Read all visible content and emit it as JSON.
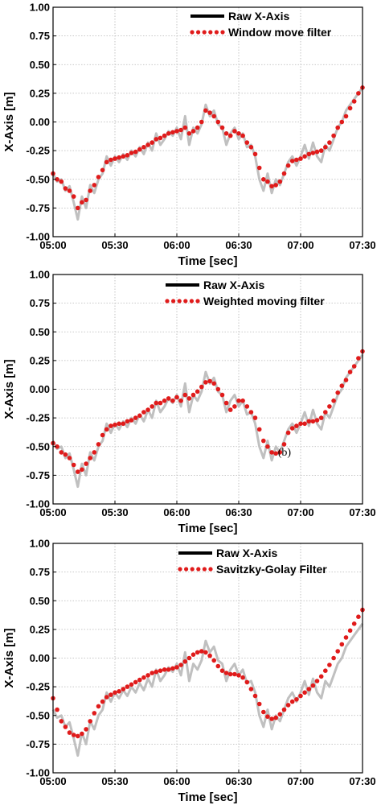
{
  "colors": {
    "raw": "#c0c0c0",
    "filtered": "#e01b1b",
    "legend_raw": "#000000",
    "grid": "#b5b5b5"
  },
  "chart_data": [
    {
      "type": "line",
      "xlabel": "Time [sec]",
      "ylabel": "X-Axis [m]",
      "xticks": [
        "05:00",
        "05:30",
        "06:00",
        "06:30",
        "07:00",
        "07:30"
      ],
      "yticks": [
        "1.00",
        "0.75",
        "0.50",
        "0.25",
        "0.00",
        "-0.25",
        "-0.50",
        "-0.75",
        "-1.00"
      ],
      "x_unit": "seconds since 05:00",
      "xlim": [
        0,
        150
      ],
      "ylim": [
        -1.0,
        1.0
      ],
      "grid": true,
      "legend_position": "top-right",
      "annotation": "",
      "series": [
        {
          "name": "Raw X-Axis",
          "style": "solid",
          "x": [
            0,
            2,
            4,
            6,
            8,
            10,
            12,
            14,
            16,
            18,
            20,
            22,
            24,
            26,
            28,
            30,
            32,
            34,
            36,
            38,
            40,
            42,
            44,
            46,
            48,
            50,
            52,
            54,
            56,
            58,
            60,
            62,
            64,
            66,
            68,
            70,
            72,
            74,
            76,
            78,
            80,
            82,
            84,
            86,
            88,
            90,
            92,
            94,
            96,
            98,
            100,
            102,
            104,
            106,
            108,
            110,
            112,
            114,
            116,
            118,
            120,
            122,
            124,
            126,
            128,
            130,
            132,
            134,
            136,
            138,
            140,
            142,
            144,
            146,
            148,
            150
          ],
          "y": [
            -0.45,
            -0.52,
            -0.5,
            -0.6,
            -0.56,
            -0.7,
            -0.85,
            -0.65,
            -0.75,
            -0.55,
            -0.62,
            -0.5,
            -0.45,
            -0.3,
            -0.38,
            -0.3,
            -0.35,
            -0.28,
            -0.33,
            -0.25,
            -0.3,
            -0.22,
            -0.28,
            -0.18,
            -0.25,
            -0.1,
            -0.2,
            -0.15,
            -0.08,
            -0.12,
            -0.05,
            -0.15,
            0.05,
            -0.2,
            -0.05,
            -0.1,
            -0.02,
            0.15,
            0.05,
            0.1,
            -0.02,
            -0.05,
            -0.2,
            -0.1,
            -0.05,
            -0.15,
            -0.1,
            -0.22,
            -0.2,
            -0.3,
            -0.5,
            -0.6,
            -0.45,
            -0.62,
            -0.5,
            -0.55,
            -0.45,
            -0.35,
            -0.3,
            -0.38,
            -0.3,
            -0.2,
            -0.32,
            -0.18,
            -0.3,
            -0.35,
            -0.2,
            -0.25,
            -0.15,
            -0.05,
            0.0,
            0.1,
            0.15,
            0.2,
            0.25,
            0.3
          ]
        },
        {
          "name": "Window move filter",
          "style": "dotted",
          "x": [
            0,
            2,
            4,
            6,
            8,
            10,
            12,
            14,
            16,
            18,
            20,
            22,
            24,
            26,
            28,
            30,
            32,
            34,
            36,
            38,
            40,
            42,
            44,
            46,
            48,
            50,
            52,
            54,
            56,
            58,
            60,
            62,
            64,
            66,
            68,
            70,
            72,
            74,
            76,
            78,
            80,
            82,
            84,
            86,
            88,
            90,
            92,
            94,
            96,
            98,
            100,
            102,
            104,
            106,
            108,
            110,
            112,
            114,
            116,
            118,
            120,
            122,
            124,
            126,
            128,
            130,
            132,
            134,
            136,
            138,
            140,
            142,
            144,
            146,
            148,
            150
          ],
          "y": [
            -0.45,
            -0.5,
            -0.52,
            -0.58,
            -0.6,
            -0.65,
            -0.75,
            -0.7,
            -0.68,
            -0.6,
            -0.55,
            -0.48,
            -0.42,
            -0.35,
            -0.33,
            -0.32,
            -0.31,
            -0.3,
            -0.29,
            -0.27,
            -0.26,
            -0.24,
            -0.22,
            -0.2,
            -0.18,
            -0.15,
            -0.14,
            -0.12,
            -0.1,
            -0.09,
            -0.08,
            -0.07,
            -0.05,
            -0.1,
            -0.08,
            -0.05,
            0.0,
            0.1,
            0.08,
            0.05,
            0.0,
            -0.05,
            -0.1,
            -0.12,
            -0.08,
            -0.1,
            -0.12,
            -0.18,
            -0.22,
            -0.28,
            -0.4,
            -0.5,
            -0.52,
            -0.56,
            -0.55,
            -0.52,
            -0.45,
            -0.38,
            -0.34,
            -0.33,
            -0.32,
            -0.3,
            -0.28,
            -0.27,
            -0.26,
            -0.25,
            -0.22,
            -0.18,
            -0.12,
            -0.05,
            0.0,
            0.05,
            0.12,
            0.18,
            0.25,
            0.3
          ]
        }
      ]
    },
    {
      "type": "line",
      "xlabel": "Time [sec]",
      "ylabel": "X-Axis [m]",
      "xticks": [
        "05:00",
        "05:30",
        "06:00",
        "06:30",
        "07:00",
        "07:30"
      ],
      "yticks": [
        "1.00",
        "0.75",
        "0.50",
        "0.25",
        "0.00",
        "-0.25",
        "-0.50",
        "-0.75",
        "-1.00"
      ],
      "x_unit": "seconds since 05:00",
      "xlim": [
        0,
        150
      ],
      "ylim": [
        -1.0,
        1.0
      ],
      "grid": true,
      "legend_position": "top-right",
      "annotation": "(b)",
      "series": [
        {
          "name": "Raw X-Axis",
          "style": "solid",
          "x": [
            0,
            2,
            4,
            6,
            8,
            10,
            12,
            14,
            16,
            18,
            20,
            22,
            24,
            26,
            28,
            30,
            32,
            34,
            36,
            38,
            40,
            42,
            44,
            46,
            48,
            50,
            52,
            54,
            56,
            58,
            60,
            62,
            64,
            66,
            68,
            70,
            72,
            74,
            76,
            78,
            80,
            82,
            84,
            86,
            88,
            90,
            92,
            94,
            96,
            98,
            100,
            102,
            104,
            106,
            108,
            110,
            112,
            114,
            116,
            118,
            120,
            122,
            124,
            126,
            128,
            130,
            132,
            134,
            136,
            138,
            140,
            142,
            144,
            146,
            148,
            150
          ],
          "y": [
            -0.45,
            -0.52,
            -0.5,
            -0.6,
            -0.56,
            -0.7,
            -0.85,
            -0.65,
            -0.75,
            -0.55,
            -0.62,
            -0.5,
            -0.45,
            -0.3,
            -0.38,
            -0.3,
            -0.35,
            -0.28,
            -0.33,
            -0.25,
            -0.3,
            -0.22,
            -0.28,
            -0.18,
            -0.25,
            -0.1,
            -0.2,
            -0.15,
            -0.08,
            -0.12,
            -0.05,
            -0.15,
            0.05,
            -0.2,
            -0.05,
            -0.1,
            -0.02,
            0.15,
            0.05,
            0.1,
            -0.02,
            -0.05,
            -0.2,
            -0.1,
            -0.05,
            -0.15,
            -0.1,
            -0.22,
            -0.2,
            -0.3,
            -0.5,
            -0.6,
            -0.45,
            -0.62,
            -0.5,
            -0.55,
            -0.45,
            -0.35,
            -0.3,
            -0.38,
            -0.3,
            -0.2,
            -0.32,
            -0.18,
            -0.3,
            -0.35,
            -0.2,
            -0.25,
            -0.15,
            -0.05,
            0.0,
            0.1,
            0.15,
            0.2,
            0.25,
            0.3
          ]
        },
        {
          "name": "Weighted moving filter",
          "style": "dotted",
          "x": [
            0,
            2,
            4,
            6,
            8,
            10,
            12,
            14,
            16,
            18,
            20,
            22,
            24,
            26,
            28,
            30,
            32,
            34,
            36,
            38,
            40,
            42,
            44,
            46,
            48,
            50,
            52,
            54,
            56,
            58,
            60,
            62,
            64,
            66,
            68,
            70,
            72,
            74,
            76,
            78,
            80,
            82,
            84,
            86,
            88,
            90,
            92,
            94,
            96,
            98,
            100,
            102,
            104,
            106,
            108,
            110,
            112,
            114,
            116,
            118,
            120,
            122,
            124,
            126,
            128,
            130,
            132,
            134,
            136,
            138,
            140,
            142,
            144,
            146,
            148,
            150
          ],
          "y": [
            -0.47,
            -0.5,
            -0.55,
            -0.57,
            -0.6,
            -0.66,
            -0.72,
            -0.7,
            -0.65,
            -0.6,
            -0.55,
            -0.48,
            -0.4,
            -0.35,
            -0.32,
            -0.31,
            -0.3,
            -0.3,
            -0.28,
            -0.27,
            -0.25,
            -0.23,
            -0.2,
            -0.18,
            -0.15,
            -0.12,
            -0.12,
            -0.1,
            -0.08,
            -0.1,
            -0.07,
            -0.1,
            -0.05,
            -0.08,
            -0.05,
            -0.02,
            0.02,
            0.06,
            0.07,
            0.05,
            0.0,
            -0.05,
            -0.12,
            -0.18,
            -0.15,
            -0.1,
            -0.1,
            -0.15,
            -0.2,
            -0.25,
            -0.35,
            -0.45,
            -0.5,
            -0.55,
            -0.56,
            -0.55,
            -0.48,
            -0.38,
            -0.34,
            -0.32,
            -0.3,
            -0.3,
            -0.28,
            -0.28,
            -0.27,
            -0.25,
            -0.2,
            -0.15,
            -0.1,
            -0.03,
            0.03,
            0.08,
            0.15,
            0.2,
            0.27,
            0.33
          ]
        }
      ]
    },
    {
      "type": "line",
      "xlabel": "Time [sec]",
      "ylabel": "X-Axis [m]",
      "xticks": [
        "05:00",
        "05:30",
        "06:00",
        "06:30",
        "07:00",
        "07:30"
      ],
      "yticks": [
        "1.00",
        "0.75",
        "0.50",
        "0.25",
        "0.00",
        "-0.25",
        "-0.50",
        "-0.75",
        "-1.00"
      ],
      "x_unit": "seconds since 05:00",
      "xlim": [
        0,
        150
      ],
      "ylim": [
        -1.0,
        1.0
      ],
      "grid": true,
      "legend_position": "top-right",
      "annotation": "",
      "series": [
        {
          "name": "Raw X-Axis",
          "style": "solid",
          "x": [
            0,
            2,
            4,
            6,
            8,
            10,
            12,
            14,
            16,
            18,
            20,
            22,
            24,
            26,
            28,
            30,
            32,
            34,
            36,
            38,
            40,
            42,
            44,
            46,
            48,
            50,
            52,
            54,
            56,
            58,
            60,
            62,
            64,
            66,
            68,
            70,
            72,
            74,
            76,
            78,
            80,
            82,
            84,
            86,
            88,
            90,
            92,
            94,
            96,
            98,
            100,
            102,
            104,
            106,
            108,
            110,
            112,
            114,
            116,
            118,
            120,
            122,
            124,
            126,
            128,
            130,
            132,
            134,
            136,
            138,
            140,
            142,
            144,
            146,
            148,
            150
          ],
          "y": [
            -0.45,
            -0.52,
            -0.5,
            -0.6,
            -0.56,
            -0.7,
            -0.85,
            -0.65,
            -0.75,
            -0.55,
            -0.62,
            -0.5,
            -0.45,
            -0.3,
            -0.38,
            -0.3,
            -0.35,
            -0.28,
            -0.33,
            -0.25,
            -0.3,
            -0.22,
            -0.28,
            -0.18,
            -0.25,
            -0.1,
            -0.2,
            -0.15,
            -0.08,
            -0.12,
            -0.05,
            -0.15,
            0.05,
            -0.2,
            -0.05,
            -0.1,
            -0.02,
            0.15,
            0.05,
            0.1,
            -0.02,
            -0.05,
            -0.2,
            -0.1,
            -0.05,
            -0.15,
            -0.1,
            -0.22,
            -0.2,
            -0.3,
            -0.5,
            -0.6,
            -0.45,
            -0.62,
            -0.5,
            -0.55,
            -0.45,
            -0.35,
            -0.3,
            -0.38,
            -0.3,
            -0.2,
            -0.32,
            -0.18,
            -0.3,
            -0.35,
            -0.2,
            -0.25,
            -0.15,
            -0.05,
            0.0,
            0.1,
            0.15,
            0.2,
            0.25,
            0.3
          ]
        },
        {
          "name": "Savitzky-Golay Filter",
          "style": "dotted",
          "x": [
            0,
            2,
            4,
            6,
            8,
            10,
            12,
            14,
            16,
            18,
            20,
            22,
            24,
            26,
            28,
            30,
            32,
            34,
            36,
            38,
            40,
            42,
            44,
            46,
            48,
            50,
            52,
            54,
            56,
            58,
            60,
            62,
            64,
            66,
            68,
            70,
            72,
            74,
            76,
            78,
            80,
            82,
            84,
            86,
            88,
            90,
            92,
            94,
            96,
            98,
            100,
            102,
            104,
            106,
            108,
            110,
            112,
            114,
            116,
            118,
            120,
            122,
            124,
            126,
            128,
            130,
            132,
            134,
            136,
            138,
            140,
            142,
            144,
            146,
            148,
            150
          ],
          "y": [
            -0.35,
            -0.45,
            -0.55,
            -0.6,
            -0.65,
            -0.67,
            -0.68,
            -0.66,
            -0.62,
            -0.55,
            -0.48,
            -0.42,
            -0.38,
            -0.34,
            -0.32,
            -0.3,
            -0.29,
            -0.27,
            -0.25,
            -0.23,
            -0.21,
            -0.19,
            -0.17,
            -0.15,
            -0.13,
            -0.12,
            -0.11,
            -0.1,
            -0.1,
            -0.09,
            -0.08,
            -0.06,
            -0.03,
            0.0,
            0.03,
            0.05,
            0.06,
            0.05,
            0.02,
            -0.02,
            -0.07,
            -0.11,
            -0.13,
            -0.14,
            -0.14,
            -0.15,
            -0.17,
            -0.21,
            -0.27,
            -0.33,
            -0.4,
            -0.47,
            -0.51,
            -0.53,
            -0.52,
            -0.49,
            -0.45,
            -0.41,
            -0.38,
            -0.36,
            -0.33,
            -0.3,
            -0.27,
            -0.24,
            -0.2,
            -0.16,
            -0.11,
            -0.06,
            0.0,
            0.06,
            0.12,
            0.18,
            0.24,
            0.3,
            0.36,
            0.42
          ]
        }
      ]
    }
  ]
}
